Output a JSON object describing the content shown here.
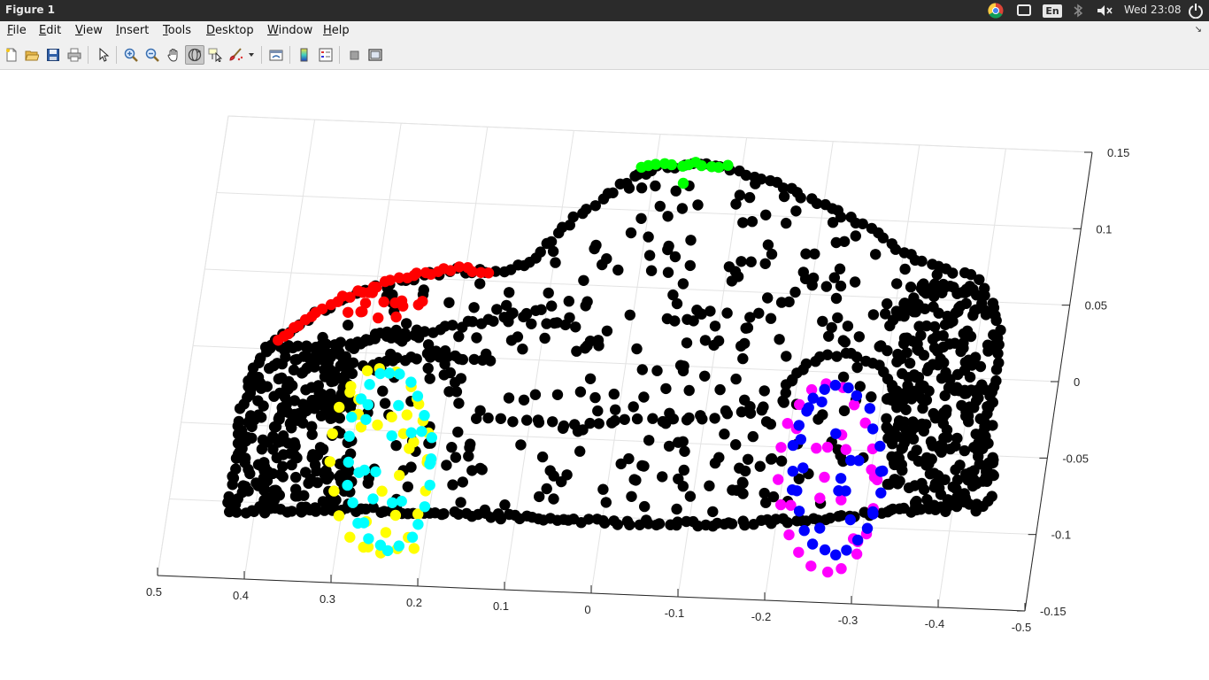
{
  "window": {
    "title": "Figure 1"
  },
  "system_tray": {
    "icons": [
      "chrome-icon",
      "cast-icon",
      "keyboard-layout-icon",
      "bluetooth-icon",
      "volume-muted-icon",
      "power-icon"
    ],
    "keyboard_layout": "En",
    "clock": "Wed 23:08"
  },
  "menu": {
    "items": [
      {
        "label": "File",
        "mnemonic": "F",
        "rest": "ile"
      },
      {
        "label": "Edit",
        "mnemonic": "E",
        "rest": "dit"
      },
      {
        "label": "View",
        "mnemonic": "V",
        "rest": "iew"
      },
      {
        "label": "Insert",
        "mnemonic": "I",
        "rest": "nsert"
      },
      {
        "label": "Tools",
        "mnemonic": "T",
        "rest": "ools"
      },
      {
        "label": "Desktop",
        "mnemonic": "D",
        "rest": "esktop"
      },
      {
        "label": "Window",
        "mnemonic": "W",
        "rest": "indow"
      },
      {
        "label": "Help",
        "mnemonic": "H",
        "rest": "elp"
      }
    ]
  },
  "toolbar": {
    "buttons": [
      "new-figure",
      "open-file",
      "save-figure",
      "print-figure",
      "edit-plot",
      "zoom-in",
      "zoom-out",
      "pan",
      "rotate-3d",
      "data-cursor",
      "brush",
      "link-plot",
      "insert-colorbar",
      "insert-legend",
      "hide-plot-tools",
      "show-plot-tools"
    ],
    "active": "rotate-3d"
  },
  "chart_data": {
    "type": "scatter",
    "dimensions": 3,
    "title": "",
    "x_ticks": [
      "0.5",
      "0.4",
      "0.3",
      "0.2",
      "0.1",
      "0",
      "-0.1",
      "-0.2",
      "-0.3",
      "-0.4",
      "-0.5"
    ],
    "z_ticks": [
      "0.15",
      "0.1",
      "0.05",
      "0",
      "-0.05",
      "-0.1",
      "-0.15"
    ],
    "xlim": [
      -0.5,
      0.5
    ],
    "zlim": [
      -0.15,
      0.15
    ],
    "grid": true,
    "marker": "filled circle",
    "description_of_shape": "point cloud of a car body, viewed from the side",
    "series": [
      {
        "color": "#000000",
        "role": "car body points"
      },
      {
        "color": "#ff0000",
        "role": "rear roof segment"
      },
      {
        "color": "#00ff00",
        "role": "front roof segment"
      },
      {
        "color": "#ffff00",
        "role": "rear wheel segment"
      },
      {
        "color": "#00ffff",
        "role": "rear wheel segment"
      },
      {
        "color": "#ff00ff",
        "role": "front wheel segment"
      },
      {
        "color": "#0000ff",
        "role": "front wheel segment"
      }
    ]
  }
}
